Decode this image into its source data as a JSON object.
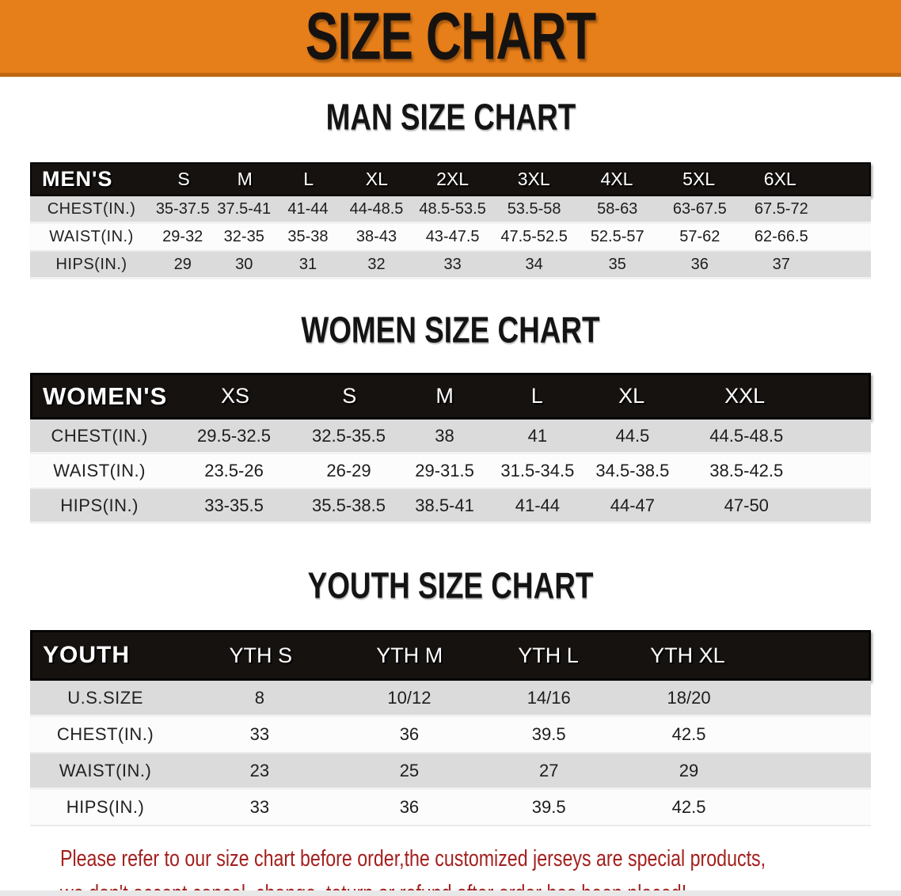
{
  "banner": {
    "title": "SIZE CHART"
  },
  "colors": {
    "banner-orange": "#E67E19",
    "banner-edge": "#BE6610",
    "ink-black": "#161210",
    "row-gray": "#DBDBDB",
    "row-white": "#FCFCFC",
    "footer-red": "#A3201E"
  },
  "sections": [
    {
      "id": "men",
      "heading": "MAN SIZE CHART",
      "table": {
        "label": "MEN'S",
        "columns": [
          "S",
          "M",
          "L",
          "XL",
          "2XL",
          "3XL",
          "4XL",
          "5XL",
          "6XL"
        ],
        "rows": [
          {
            "label": "CHEST(IN.)",
            "values": [
              "35-37.5",
              "37.5-41",
              "41-44",
              "44-48.5",
              "48.5-53.5",
              "53.5-58",
              "58-63",
              "63-67.5",
              "67.5-72"
            ]
          },
          {
            "label": "WAIST(IN.)",
            "values": [
              "29-32",
              "32-35",
              "35-38",
              "38-43",
              "43-47.5",
              "47.5-52.5",
              "52.5-57",
              "57-62",
              "62-66.5"
            ]
          },
          {
            "label": "HIPS(IN.)",
            "values": [
              "29",
              "30",
              "31",
              "32",
              "33",
              "34",
              "35",
              "36",
              "37"
            ]
          }
        ]
      }
    },
    {
      "id": "women",
      "heading": "WOMEN SIZE CHART",
      "table": {
        "label": "WOMEN'S",
        "columns": [
          "XS",
          "S",
          "M",
          "L",
          "XL",
          "XXL"
        ],
        "rows": [
          {
            "label": "CHEST(IN.)",
            "values": [
              "29.5-32.5",
              "32.5-35.5",
              "38",
              "41",
              "44.5",
              "44.5-48.5"
            ]
          },
          {
            "label": "WAIST(IN.)",
            "values": [
              "23.5-26",
              "26-29",
              "29-31.5",
              "31.5-34.5",
              "34.5-38.5",
              "38.5-42.5"
            ]
          },
          {
            "label": "HIPS(IN.)",
            "values": [
              "33-35.5",
              "35.5-38.5",
              "38.5-41",
              "41-44",
              "44-47",
              "47-50"
            ]
          }
        ]
      }
    },
    {
      "id": "youth",
      "heading": "YOUTH SIZE CHART",
      "table": {
        "label": "YOUTH",
        "columns": [
          "YTH S",
          "YTH M",
          "YTH L",
          "YTH XL"
        ],
        "rows": [
          {
            "label": "U.S.SIZE",
            "values": [
              "8",
              "10/12",
              "14/16",
              "18/20"
            ]
          },
          {
            "label": "CHEST(IN.)",
            "values": [
              "33",
              "36",
              "39.5",
              "42.5"
            ]
          },
          {
            "label": "WAIST(IN.)",
            "values": [
              "23",
              "25",
              "27",
              "29"
            ]
          },
          {
            "label": "HIPS(IN.)",
            "values": [
              "33",
              "36",
              "39.5",
              "42.5"
            ]
          }
        ]
      }
    }
  ],
  "footer": {
    "line1": "Please refer to our size chart before order,the customized jerseys are special products,",
    "line2": "we don't accept cancel, change, teturn or refund after order has been placed!"
  }
}
